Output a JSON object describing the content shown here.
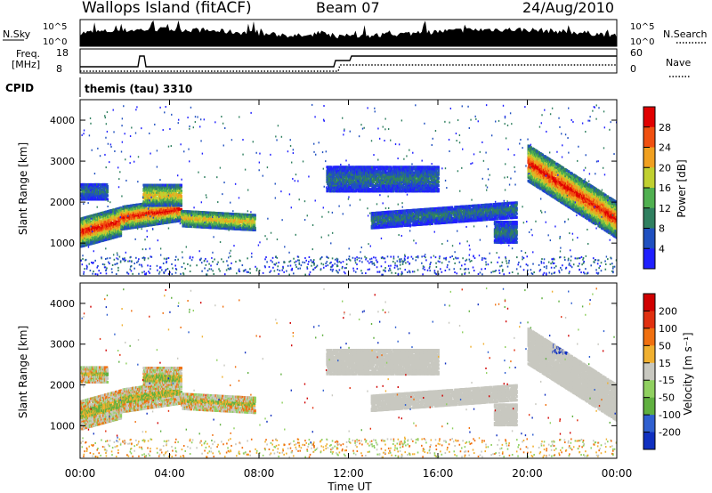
{
  "header": {
    "station": "Wallops Island (fitACF)",
    "beam": "Beam 07",
    "date": "24/Aug/2010"
  },
  "top_panels": {
    "nsky_label": "N.Sky",
    "nsky_ticks": [
      "10^5",
      "10^0"
    ],
    "nsearch_label": "N.Search",
    "freq_label_1": "Freq.",
    "freq_label_2": "[MHz]",
    "freq_ticks": [
      "18",
      "8"
    ],
    "nave_label": "Nave",
    "nave_ticks": [
      "60",
      "0"
    ],
    "cpid_label": "CPID",
    "cpid_value": "themis (tau) 3310"
  },
  "colors": {
    "power_scale": [
      "#2020ff",
      "#2050c0",
      "#308060",
      "#50b050",
      "#c0d030",
      "#f0a020",
      "#f05010",
      "#e00000"
    ],
    "velocity_scale": [
      "#1030c0",
      "#3060d0",
      "#60b040",
      "#90d060",
      "#c8c8c0",
      "#f0b030",
      "#f07010",
      "#e03010",
      "#d00000"
    ],
    "ground_scatter": "#c8c8c0"
  },
  "chart_data": [
    {
      "type": "heatmap",
      "name": "power",
      "ylabel": "Slant Range [km]",
      "yticks": [
        "4000",
        "3000",
        "2000",
        "1000"
      ],
      "colorbar_label": "Power [dB]",
      "colorbar_ticks": [
        "28",
        "24",
        "20",
        "16",
        "12",
        "8",
        "4"
      ],
      "xlim": [
        0,
        24
      ],
      "ylim": [
        200,
        4500
      ]
    },
    {
      "type": "heatmap",
      "name": "velocity",
      "ylabel": "Slant Range [km]",
      "yticks": [
        "4000",
        "3000",
        "2000",
        "1000"
      ],
      "colorbar_label": "Velocity [m s⁻¹]",
      "colorbar_ticks": [
        "200",
        "100",
        "50",
        "15",
        "-15",
        "-50",
        "-100",
        "-200"
      ],
      "xlim": [
        0,
        24
      ],
      "ylim": [
        200,
        4500
      ]
    }
  ],
  "xaxis": {
    "label": "Time UT",
    "ticks": [
      "00:00",
      "04:00",
      "08:00",
      "12:00",
      "16:00",
      "20:00",
      "00:00"
    ]
  }
}
